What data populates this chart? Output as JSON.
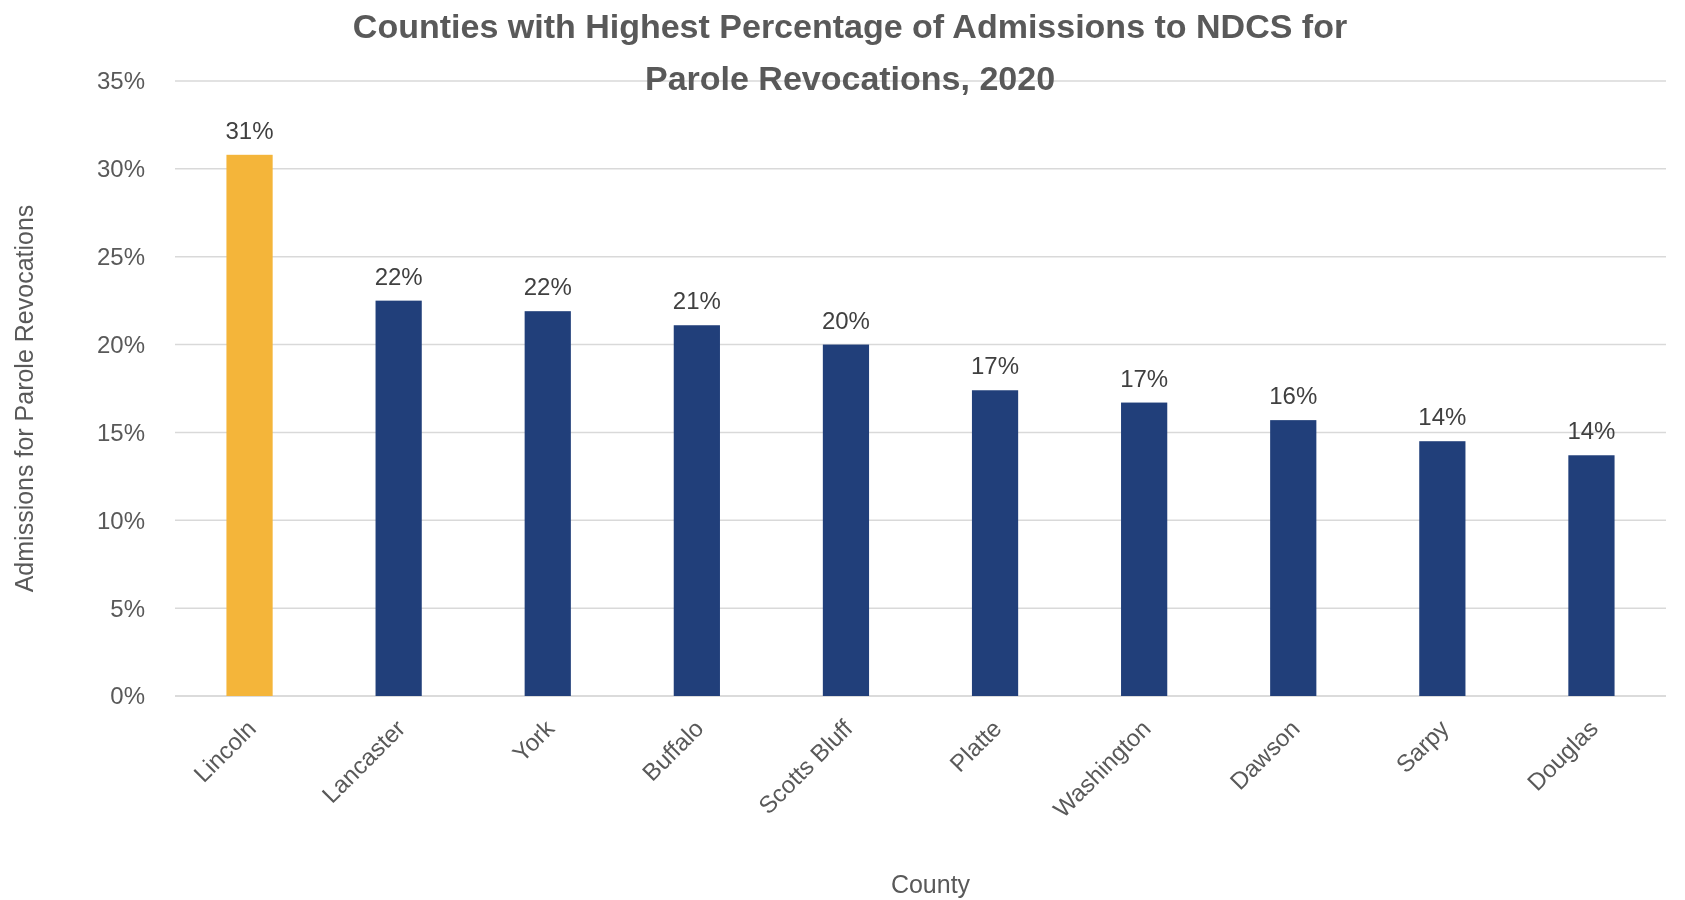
{
  "chart_data": {
    "type": "bar",
    "title": "Counties with Highest Percentage of Admissions to NDCS for Parole Revocations, 2020",
    "xlabel": "County",
    "ylabel": "Admissions for Parole Revocations",
    "categories": [
      "Lincoln",
      "Lancaster",
      "York",
      "Buffalo",
      "Scotts Bluff",
      "Platte",
      "Washington",
      "Dawson",
      "Sarpy",
      "Douglas"
    ],
    "values": [
      30.8,
      22.5,
      21.9,
      21.1,
      20.0,
      17.4,
      16.7,
      15.7,
      14.5,
      13.7
    ],
    "value_labels": [
      "31%",
      "22%",
      "22%",
      "21%",
      "20%",
      "17%",
      "17%",
      "16%",
      "14%",
      "14%"
    ],
    "colors": [
      "#f4b53a",
      "#213f7a",
      "#213f7a",
      "#213f7a",
      "#213f7a",
      "#213f7a",
      "#213f7a",
      "#213f7a",
      "#213f7a",
      "#213f7a"
    ],
    "ylim": [
      0,
      35
    ],
    "yticks": [
      {
        "value": 0,
        "label": "0%"
      },
      {
        "value": 5,
        "label": "5%"
      },
      {
        "value": 10,
        "label": "10%"
      },
      {
        "value": 15,
        "label": "15%"
      },
      {
        "value": 20,
        "label": "20%"
      },
      {
        "value": 25,
        "label": "25%"
      },
      {
        "value": 30,
        "label": "30%"
      },
      {
        "value": 35,
        "label": "35%"
      }
    ],
    "grid": "y"
  }
}
